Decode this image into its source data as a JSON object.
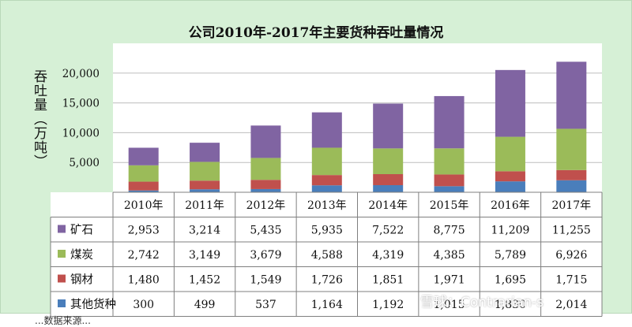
{
  "chart_data": {
    "type": "bar",
    "stacked": true,
    "title": "公司2010年-2017年主要货种吞吐量情况",
    "ylabel": "吞吐量（万吨）",
    "ylim": [
      0,
      25000
    ],
    "yticks": [
      "-",
      "5,000",
      "10,000",
      "15,000",
      "20,000"
    ],
    "categories": [
      "2010年",
      "2011年",
      "2012年",
      "2013年",
      "2014年",
      "2015年",
      "2016年",
      "2017年"
    ],
    "series": [
      {
        "name": "其他货种",
        "color": "#4a7ebb",
        "values": [
          300,
          499,
          537,
          1164,
          1192,
          1015,
          1830,
          2014
        ],
        "labels": [
          "300",
          "499",
          "537",
          "1,164",
          "1,192",
          "1,015",
          "1,830",
          "2,014"
        ]
      },
      {
        "name": "钢材",
        "color": "#c0504d",
        "values": [
          1480,
          1452,
          1549,
          1726,
          1851,
          1971,
          1695,
          1715
        ],
        "labels": [
          "1,480",
          "1,452",
          "1,549",
          "1,726",
          "1,851",
          "1,971",
          "1,695",
          "1,715"
        ]
      },
      {
        "name": "煤炭",
        "color": "#9bbb59",
        "values": [
          2742,
          3149,
          3679,
          4588,
          4319,
          4385,
          5789,
          6926
        ],
        "labels": [
          "2,742",
          "3,149",
          "3,679",
          "4,588",
          "4,319",
          "4,385",
          "5,789",
          "6,926"
        ]
      },
      {
        "name": "矿石",
        "color": "#8064a2",
        "values": [
          2953,
          3214,
          5435,
          5935,
          7522,
          8775,
          11209,
          11255
        ],
        "labels": [
          "2,953",
          "3,214",
          "5,435",
          "5,935",
          "7,522",
          "8,775",
          "11,209",
          "11,255"
        ]
      }
    ],
    "table_row_order": [
      "矿石",
      "煤炭",
      "钢材",
      "其他货种"
    ],
    "grid": true,
    "legend": "data-table"
  },
  "watermark": "雪球：Contrarian-s",
  "footnote": "...数据来源..."
}
